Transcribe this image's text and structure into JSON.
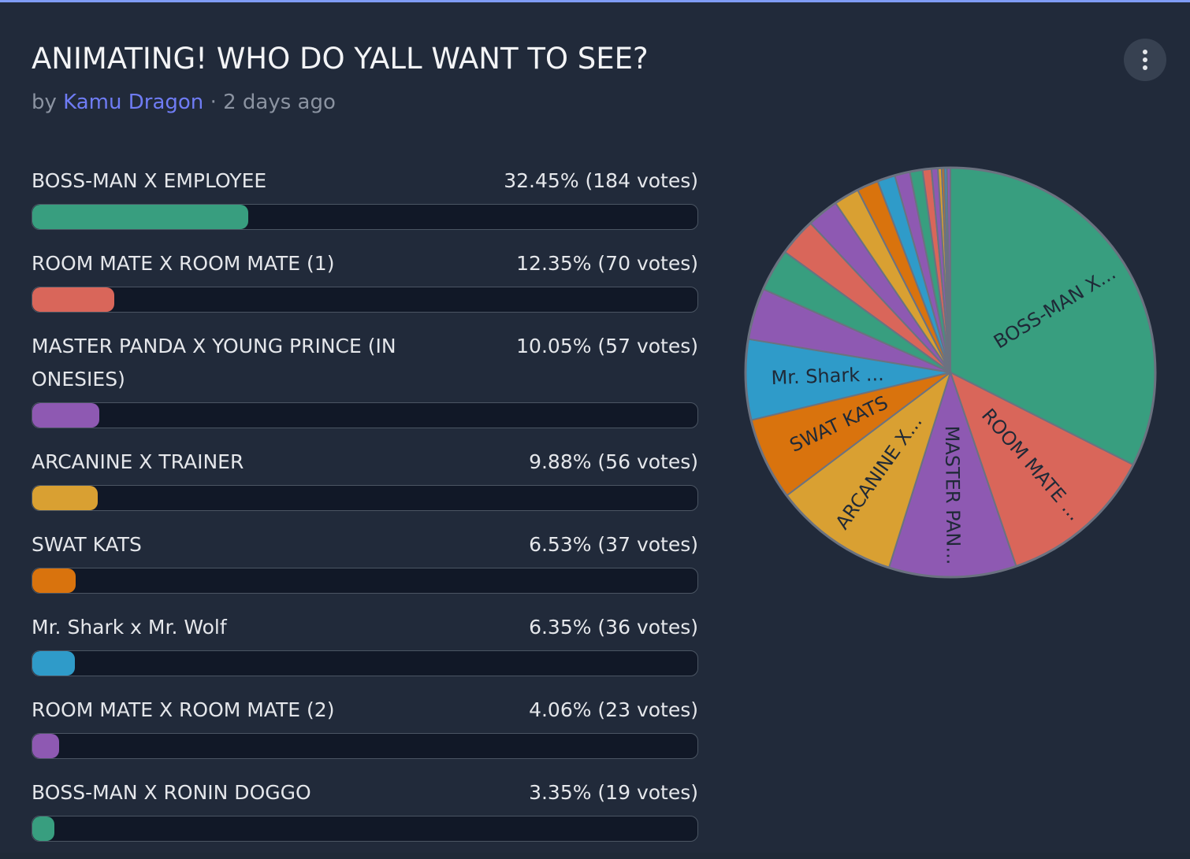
{
  "header": {
    "title": "ANIMATING! WHO DO YALL WANT TO SEE?",
    "by": "by",
    "author": "Kamu Dragon",
    "time": "· 2 days ago"
  },
  "chart_data": {
    "type": "pie",
    "categories": [
      "BOSS-MAN X EMPLOYEE",
      "ROOM MATE X ROOM MATE (1)",
      "MASTER PANDA X YOUNG PRINCE (IN ONESIES)",
      "ARCANINE X TRAINER",
      "SWAT KATS",
      "Mr. Shark x Mr. Wolf",
      "ROOM MATE X ROOM MATE (2)",
      "BOSS-MAN X RONIN DOGGO",
      null,
      null,
      null,
      null,
      null,
      null,
      null,
      null,
      null,
      null,
      null,
      null,
      null
    ],
    "values": [
      32.45,
      12.35,
      10.05,
      9.88,
      6.53,
      6.35,
      4.06,
      3.35,
      3,
      2.5,
      2,
      1.7,
      1.4,
      1.2,
      1,
      0.7,
      0.5,
      0.3,
      0.2,
      0.2,
      0.28
    ],
    "value_labels": [
      "32.45% (184 votes)",
      "12.35% (70 votes)",
      "10.05% (57 votes)",
      "9.88% (56 votes)",
      "6.53% (37 votes)",
      "6.35% (36 votes)",
      "4.06% (23 votes)",
      "3.35% (19 votes)",
      null,
      null,
      null,
      null,
      null,
      null,
      null,
      null,
      null,
      null,
      null,
      null,
      null
    ],
    "slice_labels": [
      "BOSS-MAN X...",
      "ROOM MATE ...",
      "MASTER PAN...",
      "ARCANINE X...",
      "SWAT KATS",
      "Mr. Shark ...",
      null,
      null,
      null,
      null,
      null,
      null,
      null,
      null,
      null,
      null,
      null,
      null,
      null,
      null,
      null
    ],
    "colors": [
      "#389e7f",
      "#d9665a",
      "#8e59b2",
      "#d9a032",
      "#d9730d",
      "#2f9bc9",
      "#8e59b2",
      "#389e7f",
      "#d9665a",
      "#8e59b2",
      "#d9a032",
      "#d9730d",
      "#2f9bc9",
      "#8e59b2",
      "#389e7f",
      "#d9665a",
      "#8e59b2",
      "#d9a032",
      "#d9730d",
      "#2f9bc9",
      "#8e59b2"
    ]
  }
}
